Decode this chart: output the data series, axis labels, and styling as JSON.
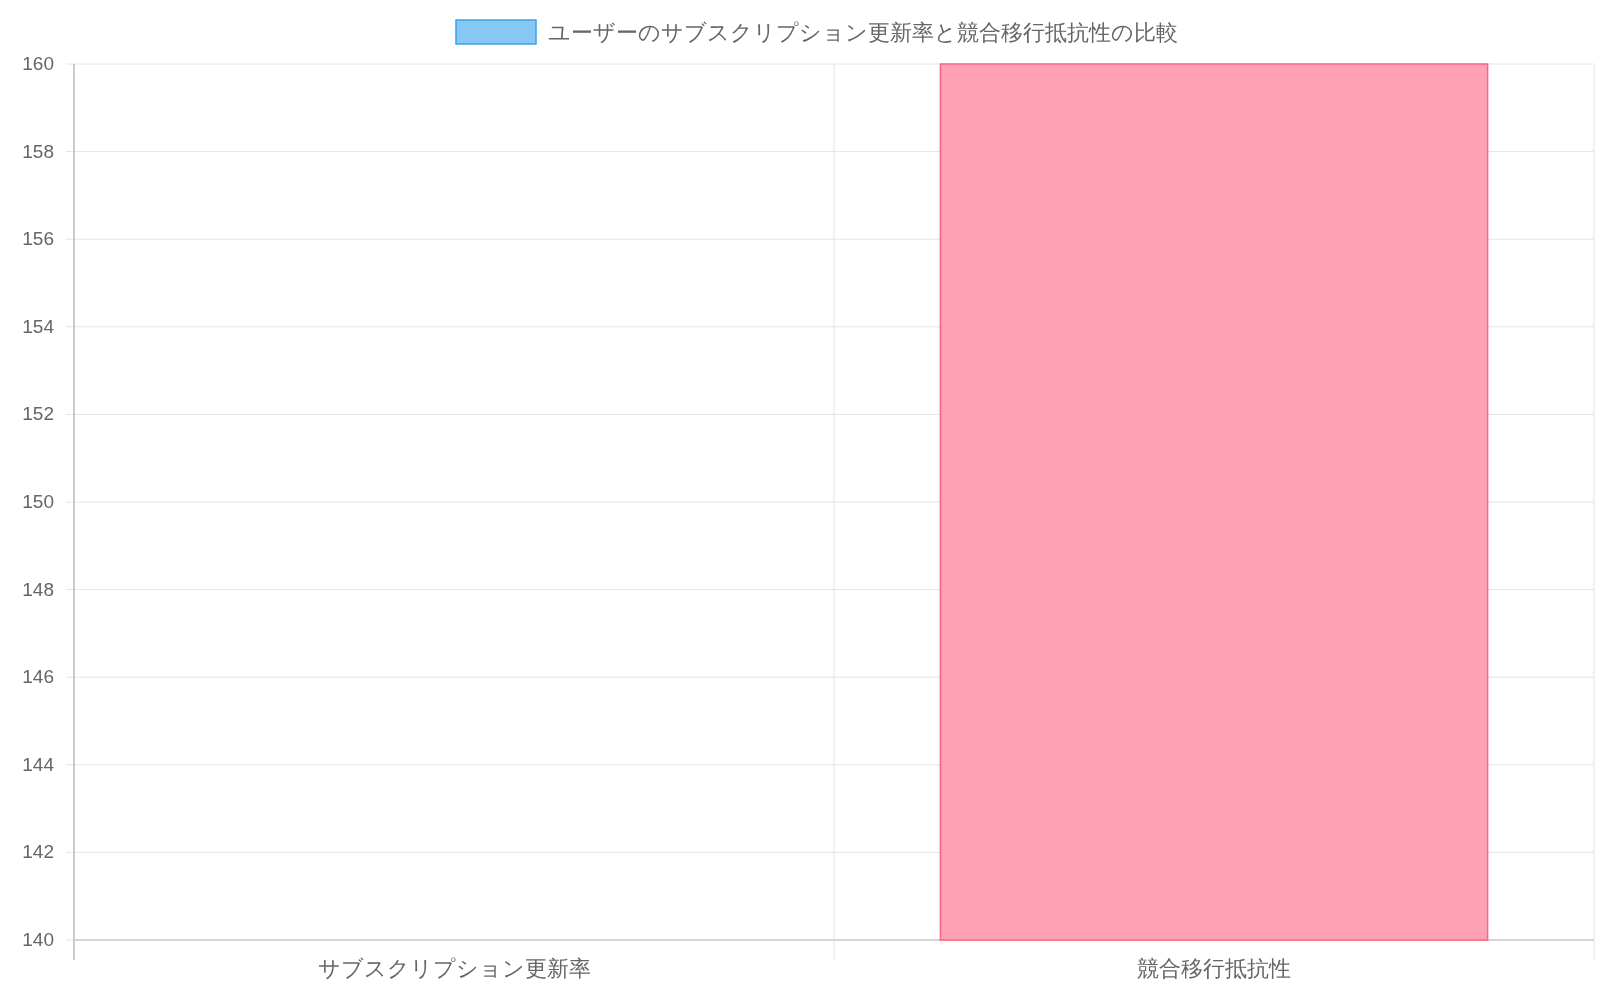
{
  "chart_data": {
    "type": "bar",
    "categories": [
      "サブスクリプション更新率",
      "競合移行抵抗性"
    ],
    "series": [
      {
        "name": "ユーザーのサブスクリプション更新率と競合移行抵抗性の比較",
        "color": "#86c7f3",
        "colors": [
          "#86c7f3",
          "#ffa1b5"
        ],
        "values": [
          140,
          160
        ]
      }
    ],
    "ylim": [
      140,
      160
    ],
    "yticks": [
      140,
      142,
      144,
      146,
      148,
      150,
      152,
      154,
      156,
      158,
      160
    ],
    "grid": true,
    "legend": "top"
  }
}
